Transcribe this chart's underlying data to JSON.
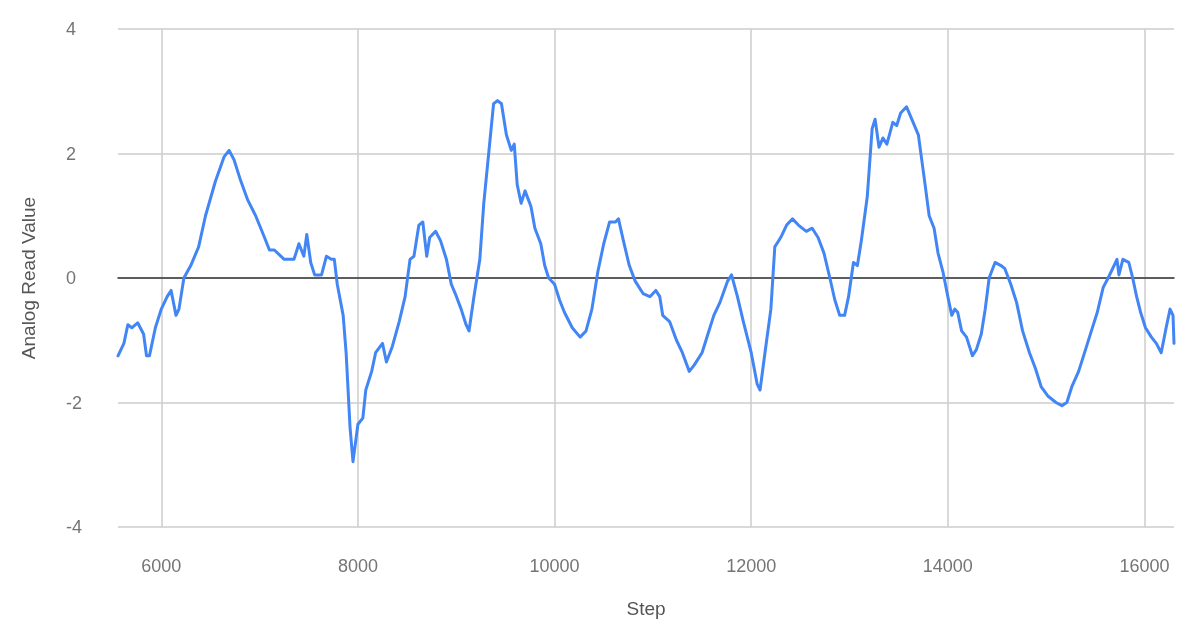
{
  "chart_data": {
    "type": "line",
    "xlabel": "Step",
    "ylabel": "Analog Read Value",
    "xlim": [
      5560,
      16300
    ],
    "xticks": [
      6000,
      8000,
      10000,
      12000,
      14000,
      16000
    ],
    "ylim": [
      -4,
      4
    ],
    "yticks": [
      -4,
      -2,
      0,
      2,
      4
    ],
    "grid": true,
    "marker": "none",
    "line_style": "solid",
    "series": [
      {
        "color": "#4285f4",
        "x": [
          5560,
          5620,
          5660,
          5700,
          5760,
          5820,
          5850,
          5880,
          5940,
          6000,
          6060,
          6100,
          6150,
          6180,
          6230,
          6300,
          6380,
          6450,
          6550,
          6640,
          6690,
          6740,
          6800,
          6880,
          6960,
          7050,
          7100,
          7150,
          7250,
          7350,
          7400,
          7450,
          7480,
          7520,
          7560,
          7630,
          7680,
          7730,
          7760,
          7790,
          7850,
          7880,
          7920,
          7950,
          8000,
          8050,
          8080,
          8140,
          8180,
          8250,
          8290,
          8350,
          8420,
          8480,
          8530,
          8570,
          8620,
          8660,
          8700,
          8730,
          8790,
          8840,
          8900,
          8950,
          8990,
          9050,
          9100,
          9130,
          9180,
          9240,
          9280,
          9330,
          9380,
          9420,
          9460,
          9510,
          9560,
          9590,
          9620,
          9660,
          9700,
          9760,
          9800,
          9860,
          9900,
          9940,
          10000,
          10050,
          10100,
          10180,
          10260,
          10320,
          10380,
          10440,
          10500,
          10560,
          10620,
          10650,
          10700,
          10760,
          10820,
          10900,
          10970,
          11030,
          11070,
          11100,
          11170,
          11240,
          11300,
          11370,
          11420,
          11500,
          11560,
          11620,
          11680,
          11760,
          11800,
          11860,
          11920,
          12000,
          12060,
          12090,
          12140,
          12200,
          12240,
          12300,
          12360,
          12420,
          12480,
          12560,
          12620,
          12680,
          12740,
          12800,
          12850,
          12900,
          12950,
          12990,
          13040,
          13080,
          13120,
          13180,
          13230,
          13260,
          13300,
          13340,
          13380,
          13440,
          13480,
          13520,
          13580,
          13620,
          13700,
          13760,
          13810,
          13860,
          13900,
          13950,
          14000,
          14040,
          14070,
          14100,
          14140,
          14190,
          14250,
          14290,
          14340,
          14380,
          14420,
          14480,
          14540,
          14580,
          14640,
          14700,
          14760,
          14830,
          14890,
          14950,
          15020,
          15100,
          15160,
          15210,
          15260,
          15330,
          15400,
          15460,
          15520,
          15580,
          15630,
          15690,
          15720,
          15740,
          15780,
          15840,
          15880,
          15920,
          15960,
          16010,
          16070,
          16120,
          16170,
          16220,
          16260,
          16290,
          16300
        ],
        "values": [
          -1.25,
          -1.05,
          -0.75,
          -0.8,
          -0.72,
          -0.9,
          -1.25,
          -1.25,
          -0.8,
          -0.5,
          -0.3,
          -0.2,
          -0.6,
          -0.5,
          0.0,
          0.2,
          0.5,
          1.0,
          1.55,
          1.95,
          2.05,
          1.9,
          1.6,
          1.25,
          1.0,
          0.65,
          0.45,
          0.45,
          0.3,
          0.3,
          0.55,
          0.35,
          0.7,
          0.25,
          0.05,
          0.05,
          0.35,
          0.3,
          0.3,
          -0.1,
          -0.6,
          -1.2,
          -2.4,
          -2.95,
          -2.35,
          -2.25,
          -1.8,
          -1.5,
          -1.2,
          -1.05,
          -1.35,
          -1.1,
          -0.7,
          -0.3,
          0.3,
          0.35,
          0.85,
          0.9,
          0.35,
          0.65,
          0.75,
          0.6,
          0.3,
          -0.1,
          -0.25,
          -0.5,
          -0.75,
          -0.85,
          -0.3,
          0.3,
          1.2,
          2.0,
          2.8,
          2.85,
          2.8,
          2.3,
          2.05,
          2.15,
          1.5,
          1.2,
          1.4,
          1.15,
          0.8,
          0.55,
          0.2,
          0.0,
          -0.1,
          -0.35,
          -0.55,
          -0.8,
          -0.95,
          -0.85,
          -0.5,
          0.1,
          0.55,
          0.9,
          0.9,
          0.95,
          0.6,
          0.2,
          -0.05,
          -0.25,
          -0.3,
          -0.2,
          -0.3,
          -0.6,
          -0.7,
          -1.0,
          -1.2,
          -1.5,
          -1.4,
          -1.2,
          -0.9,
          -0.6,
          -0.4,
          -0.05,
          0.05,
          -0.3,
          -0.7,
          -1.2,
          -1.7,
          -1.8,
          -1.2,
          -0.5,
          0.5,
          0.65,
          0.85,
          0.95,
          0.85,
          0.75,
          0.8,
          0.65,
          0.4,
          0.0,
          -0.35,
          -0.6,
          -0.6,
          -0.3,
          0.25,
          0.2,
          0.6,
          1.3,
          2.4,
          2.55,
          2.1,
          2.25,
          2.15,
          2.5,
          2.45,
          2.65,
          2.75,
          2.6,
          2.3,
          1.6,
          1.0,
          0.8,
          0.4,
          0.1,
          -0.3,
          -0.6,
          -0.5,
          -0.55,
          -0.85,
          -0.95,
          -1.25,
          -1.15,
          -0.9,
          -0.5,
          0.0,
          0.25,
          0.2,
          0.15,
          -0.1,
          -0.4,
          -0.85,
          -1.2,
          -1.45,
          -1.75,
          -1.9,
          -2.0,
          -2.05,
          -2.0,
          -1.75,
          -1.5,
          -1.15,
          -0.85,
          -0.55,
          -0.15,
          0.0,
          0.2,
          0.3,
          0.05,
          0.3,
          0.25,
          0.0,
          -0.3,
          -0.55,
          -0.8,
          -0.95,
          -1.05,
          -1.2,
          -0.8,
          -0.5,
          -0.6,
          -1.05
        ]
      }
    ]
  }
}
